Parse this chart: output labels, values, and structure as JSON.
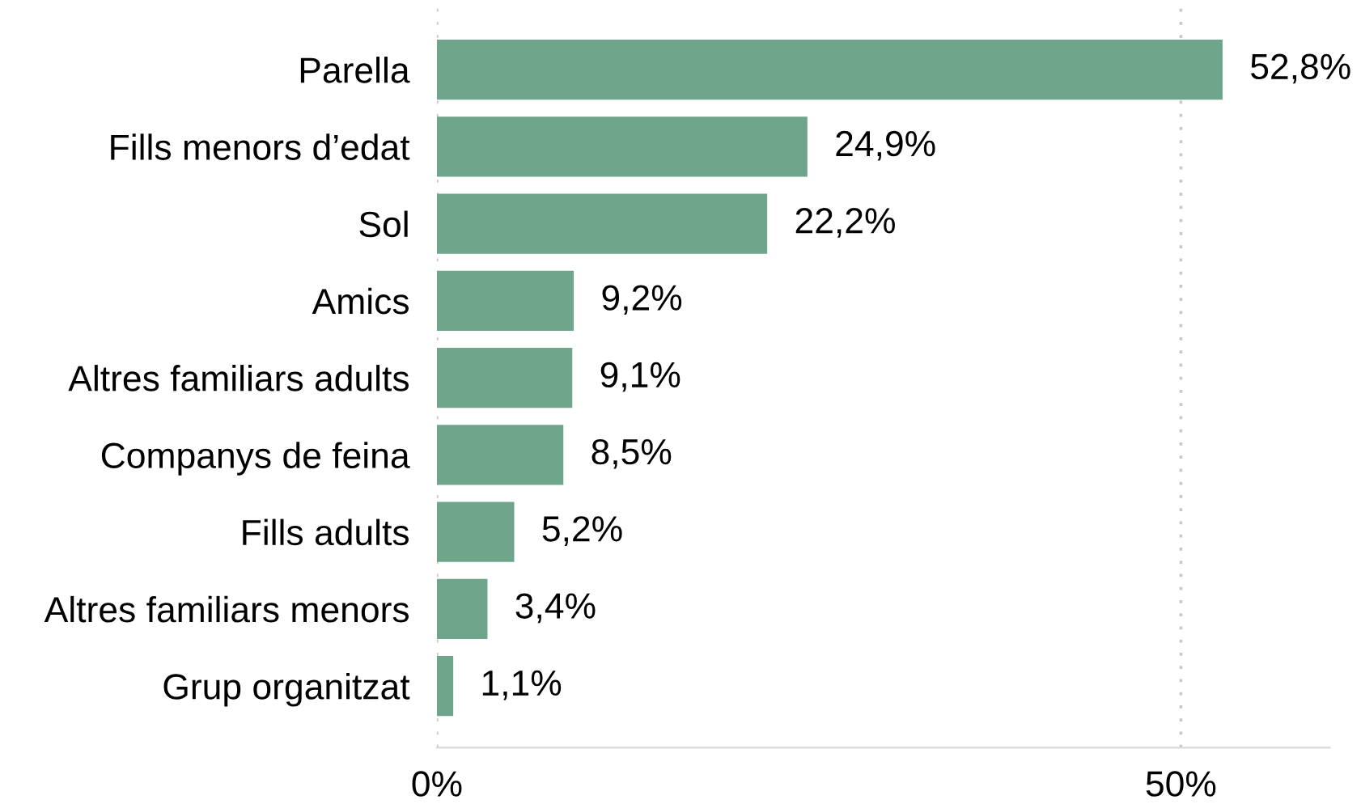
{
  "chart_data": {
    "type": "bar",
    "orientation": "horizontal",
    "categories": [
      "Parella",
      "Fills menors d’edat",
      "Sol",
      "Amics",
      "Altres familiars adults",
      "Companys de feina",
      "Fills adults",
      "Altres familiars menors",
      "Grup organitzat"
    ],
    "values": [
      52.8,
      24.9,
      22.2,
      9.2,
      9.1,
      8.5,
      5.2,
      3.4,
      1.1
    ],
    "value_labels": [
      "52,8%",
      "24,9%",
      "22,2%",
      "9,2%",
      "9,1%",
      "8,5%",
      "5,2%",
      "3,4%",
      "1,1%"
    ],
    "color": "#6fa58b",
    "xlim": [
      0,
      60
    ],
    "xticks": [
      {
        "value": 0,
        "label": "0%"
      },
      {
        "value": 50,
        "label": "50%"
      }
    ],
    "grid": "x"
  }
}
